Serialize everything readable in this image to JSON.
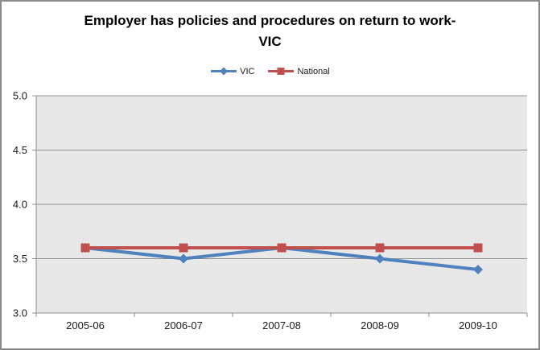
{
  "chart_data": {
    "type": "line",
    "title": "Employer has policies and procedures on return to work-VIC",
    "xlabel": "",
    "ylabel": "",
    "categories": [
      "2005-06",
      "2006-07",
      "2007-08",
      "2008-09",
      "2009-10"
    ],
    "series": [
      {
        "name": "VIC",
        "values": [
          3.6,
          3.5,
          3.6,
          3.5,
          3.4
        ],
        "color": "#4F81BD",
        "marker": "diamond"
      },
      {
        "name": "National",
        "values": [
          3.6,
          3.6,
          3.6,
          3.6,
          3.6
        ],
        "color": "#C0504D",
        "marker": "square"
      }
    ],
    "ylim": [
      3.0,
      5.0
    ],
    "ytick_step": 0.5,
    "y_tick_labels": [
      "3.0",
      "3.5",
      "4.0",
      "4.5",
      "5.0"
    ],
    "grid": true,
    "legend_position": "top-center",
    "plot_bg_color": "#E8E8E8",
    "gridline_color": "#8F8F8F",
    "axis_line_color": "#8F8F8F"
  }
}
